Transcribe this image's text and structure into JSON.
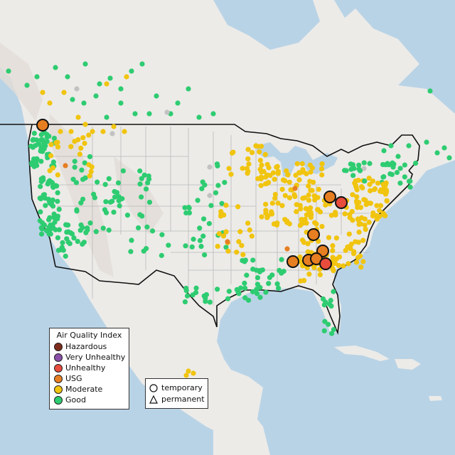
{
  "legend": {
    "title": "Air Quality Index",
    "items": [
      {
        "label": "Hazardous",
        "color": "#7e2c1c"
      },
      {
        "label": "Very Unhealthy",
        "color": "#8a4fa8"
      },
      {
        "label": "Unhealthy",
        "color": "#e74c3c"
      },
      {
        "label": "USG",
        "color": "#e67e22"
      },
      {
        "label": "Moderate",
        "color": "#f1c40f"
      },
      {
        "label": "Good",
        "color": "#2ecc71"
      }
    ]
  },
  "monitor_types": [
    {
      "label": "temporary",
      "icon": "circle-outline-icon"
    },
    {
      "label": "permanent",
      "icon": "triangle-outline-icon"
    }
  ],
  "colors": {
    "ocean": "#b9d3e6",
    "land": "#ecebe8",
    "us_land": "#f0efec",
    "mountains": "#e3ddd7",
    "border": "#111111",
    "state_lines": "#b9b9b9",
    "no_data": "#c2c2c2"
  }
}
